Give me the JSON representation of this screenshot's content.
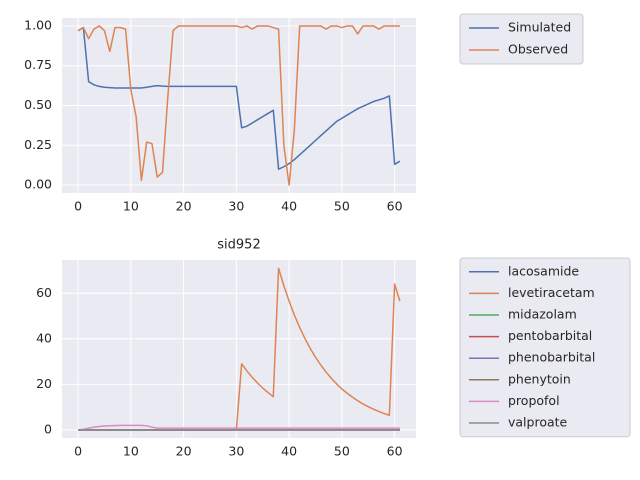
{
  "chart_data": [
    {
      "type": "line",
      "x": [
        0,
        1,
        2,
        3,
        4,
        5,
        6,
        7,
        8,
        9,
        10,
        11,
        12,
        13,
        14,
        15,
        16,
        17,
        18,
        19,
        20,
        21,
        22,
        23,
        24,
        25,
        26,
        27,
        28,
        29,
        30,
        31,
        32,
        33,
        34,
        35,
        36,
        37,
        38,
        39,
        40,
        41,
        42,
        43,
        44,
        45,
        46,
        47,
        48,
        49,
        50,
        51,
        52,
        53,
        54,
        55,
        56,
        57,
        58,
        59,
        60,
        61
      ],
      "xlim": [
        -3.05,
        64.05
      ],
      "xticks": [
        0,
        10,
        20,
        30,
        40,
        50,
        60
      ],
      "ylim": [
        -0.05,
        1.05
      ],
      "yticks": [
        {
          "value": 0,
          "label": "0.00"
        },
        {
          "value": 0.25,
          "label": "0.25"
        },
        {
          "value": 0.5,
          "label": "0.50"
        },
        {
          "value": 0.75,
          "label": "0.75"
        },
        {
          "value": 1,
          "label": "1.00"
        }
      ],
      "grid": true,
      "series": [
        {
          "name": "Simulated",
          "color": "#4c72b0",
          "values": [
            0.97,
            0.99,
            0.65,
            0.63,
            0.62,
            0.615,
            0.612,
            0.61,
            0.61,
            0.61,
            0.61,
            0.61,
            0.61,
            0.615,
            0.62,
            0.625,
            0.622,
            0.62,
            0.62,
            0.62,
            0.62,
            0.62,
            0.62,
            0.62,
            0.62,
            0.62,
            0.62,
            0.62,
            0.62,
            0.62,
            0.62,
            0.36,
            0.37,
            0.39,
            0.41,
            0.43,
            0.45,
            0.47,
            0.1,
            0.115,
            0.135,
            0.16,
            0.19,
            0.22,
            0.25,
            0.28,
            0.31,
            0.34,
            0.37,
            0.4,
            0.42,
            0.44,
            0.46,
            0.48,
            0.495,
            0.51,
            0.525,
            0.535,
            0.545,
            0.56,
            0.13,
            0.15
          ]
        },
        {
          "name": "Observed",
          "color": "#dd8452",
          "values": [
            0.97,
            0.99,
            0.92,
            0.98,
            1.0,
            0.97,
            0.84,
            0.99,
            0.99,
            0.98,
            0.6,
            0.43,
            0.03,
            0.27,
            0.26,
            0.05,
            0.08,
            0.55,
            0.97,
            1.0,
            1.0,
            1.0,
            1.0,
            1.0,
            1.0,
            1.0,
            1.0,
            1.0,
            1.0,
            1.0,
            1.0,
            0.99,
            1.0,
            0.98,
            1.0,
            1.0,
            1.0,
            0.99,
            0.98,
            0.25,
            0.0,
            0.35,
            1.0,
            1.0,
            1.0,
            1.0,
            1.0,
            0.98,
            1.0,
            1.0,
            0.99,
            1.0,
            1.0,
            0.95,
            1.0,
            1.0,
            1.0,
            0.98,
            1.0,
            1.0,
            1.0,
            1.0
          ]
        }
      ]
    },
    {
      "type": "line",
      "title": "sid952",
      "x": [
        0,
        1,
        2,
        3,
        4,
        5,
        6,
        7,
        8,
        9,
        10,
        11,
        12,
        13,
        14,
        15,
        16,
        17,
        18,
        19,
        20,
        21,
        22,
        23,
        24,
        25,
        26,
        27,
        28,
        29,
        30,
        31,
        32,
        33,
        34,
        35,
        36,
        37,
        38,
        39,
        40,
        41,
        42,
        43,
        44,
        45,
        46,
        47,
        48,
        49,
        50,
        51,
        52,
        53,
        54,
        55,
        56,
        57,
        58,
        59,
        60,
        61
      ],
      "xlim": [
        -3.05,
        64.05
      ],
      "xticks": [
        0,
        10,
        20,
        30,
        40,
        50,
        60
      ],
      "ylim": [
        -3.55,
        74.6
      ],
      "yticks": [
        0,
        20,
        40,
        60
      ],
      "grid": true,
      "series": [
        {
          "name": "lacosamide",
          "color": "#4c72b0",
          "values": [
            0,
            0,
            0,
            0,
            0,
            0,
            0,
            0,
            0,
            0,
            0,
            0,
            0,
            0,
            0,
            0,
            0,
            0,
            0,
            0,
            0,
            0,
            0,
            0,
            0,
            0,
            0,
            0,
            0,
            0,
            0,
            0,
            0,
            0,
            0,
            0,
            0,
            0,
            0,
            0,
            0,
            0,
            0,
            0,
            0,
            0,
            0,
            0,
            0,
            0,
            0,
            0,
            0,
            0,
            0,
            0,
            0,
            0,
            0,
            0,
            0,
            0
          ]
        },
        {
          "name": "levetiracetam",
          "color": "#dd8452",
          "values": [
            0,
            0,
            0,
            0,
            0,
            0,
            0,
            0,
            0,
            0,
            0,
            0,
            0,
            0,
            0,
            0,
            0,
            0,
            0,
            0,
            0,
            0,
            0,
            0,
            0,
            0,
            0,
            0,
            0,
            0,
            0,
            29,
            25.9,
            23.1,
            20.6,
            18.4,
            16.4,
            14.6,
            71,
            63.3,
            56.5,
            50.4,
            45,
            40.1,
            35.8,
            31.9,
            28.5,
            25.4,
            22.7,
            20.2,
            18,
            16.1,
            14.4,
            12.8,
            11.4,
            10.2,
            9.1,
            8.1,
            7.2,
            6.4,
            64,
            56.5
          ]
        },
        {
          "name": "midazolam",
          "color": "#55a868",
          "values": [
            0,
            0,
            0,
            0,
            0,
            0,
            0,
            0,
            0,
            0,
            0,
            0,
            0,
            0,
            0,
            0,
            0,
            0,
            0,
            0,
            0,
            0,
            0,
            0,
            0,
            0,
            0,
            0,
            0,
            0,
            0,
            0,
            0,
            0,
            0,
            0,
            0,
            0,
            0,
            0,
            0,
            0,
            0,
            0,
            0,
            0,
            0,
            0,
            0,
            0,
            0,
            0,
            0,
            0,
            0,
            0,
            0,
            0,
            0,
            0,
            0,
            0
          ]
        },
        {
          "name": "pentobarbital",
          "color": "#c44e52",
          "values": [
            0,
            0,
            0,
            0,
            0,
            0,
            0,
            0,
            0,
            0,
            0,
            0,
            0,
            0,
            0,
            0,
            0,
            0,
            0,
            0,
            0,
            0,
            0,
            0,
            0,
            0,
            0,
            0,
            0,
            0,
            0,
            0,
            0,
            0,
            0,
            0,
            0,
            0,
            0,
            0,
            0,
            0,
            0,
            0,
            0,
            0,
            0,
            0,
            0,
            0,
            0,
            0,
            0,
            0,
            0,
            0,
            0,
            0,
            0,
            0,
            0,
            0
          ]
        },
        {
          "name": "phenobarbital",
          "color": "#8172b3",
          "values": [
            0,
            0,
            0,
            0,
            0,
            0,
            0,
            0,
            0,
            0,
            0,
            0,
            0,
            0,
            0,
            0,
            0,
            0,
            0,
            0,
            0,
            0,
            0,
            0,
            0,
            0,
            0,
            0,
            0,
            0,
            0,
            0,
            0,
            0,
            0,
            0,
            0,
            0,
            0,
            0,
            0,
            0,
            0,
            0,
            0,
            0,
            0,
            0,
            0,
            0,
            0,
            0,
            0,
            0,
            0,
            0,
            0,
            0,
            0,
            0,
            0,
            0
          ]
        },
        {
          "name": "phenytoin",
          "color": "#937860",
          "values": [
            0,
            0,
            0,
            0,
            0,
            0,
            0,
            0,
            0,
            0,
            0,
            0,
            0,
            0,
            0,
            0,
            0,
            0,
            0,
            0,
            0,
            0,
            0,
            0,
            0,
            0,
            0,
            0,
            0,
            0,
            0,
            0,
            0,
            0,
            0,
            0,
            0,
            0,
            0,
            0,
            0,
            0,
            0,
            0,
            0,
            0,
            0,
            0,
            0,
            0,
            0,
            0,
            0,
            0,
            0,
            0,
            0,
            0,
            0,
            0,
            0,
            0
          ]
        },
        {
          "name": "propofol",
          "color": "#da8bc3",
          "values": [
            0,
            0.3,
            0.8,
            1.2,
            1.5,
            1.7,
            1.8,
            1.9,
            2,
            2,
            2,
            2,
            2,
            1.8,
            1.2,
            0.8,
            0.8,
            0.8,
            0.8,
            0.8,
            0.8,
            0.8,
            0.8,
            0.8,
            0.8,
            0.8,
            0.8,
            0.8,
            0.8,
            0.8,
            0.8,
            0.8,
            0.8,
            0.8,
            0.8,
            0.8,
            0.8,
            0.8,
            0.8,
            0.8,
            0.8,
            0.8,
            0.8,
            0.8,
            0.8,
            0.8,
            0.8,
            0.8,
            0.8,
            0.8,
            0.8,
            0.8,
            0.8,
            0.8,
            0.8,
            0.8,
            0.8,
            0.8,
            0.8,
            0.8,
            0.8,
            0.8
          ]
        },
        {
          "name": "valproate",
          "color": "#8c8c8c",
          "values": [
            0,
            0,
            0,
            0,
            0,
            0,
            0,
            0,
            0,
            0,
            0,
            0,
            0,
            0,
            0,
            0,
            0,
            0,
            0,
            0,
            0,
            0,
            0,
            0,
            0,
            0,
            0,
            0,
            0,
            0,
            0,
            0,
            0,
            0,
            0,
            0,
            0,
            0,
            0,
            0,
            0,
            0,
            0,
            0,
            0,
            0,
            0,
            0,
            0,
            0,
            0,
            0,
            0,
            0,
            0,
            0,
            0,
            0,
            0,
            0,
            0,
            0
          ]
        }
      ]
    }
  ]
}
